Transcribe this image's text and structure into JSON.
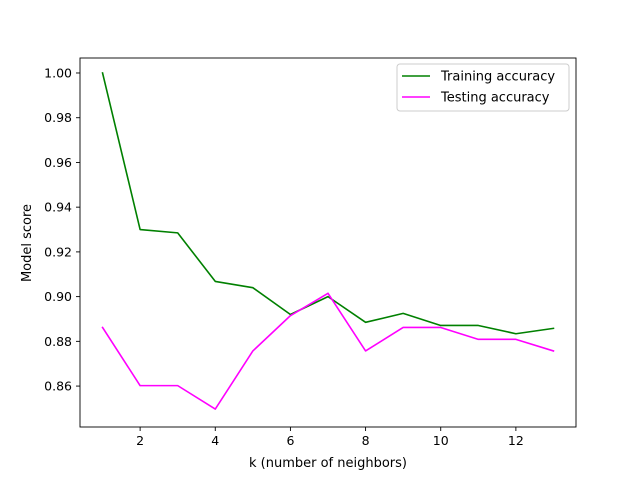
{
  "chart_data": {
    "type": "line",
    "title": "",
    "xlabel": "k (number of neighbors)",
    "ylabel": "Model score",
    "xlim": [
      0.4,
      13.6
    ],
    "ylim": [
      0.8417,
      1.0067
    ],
    "xticks": [
      2,
      4,
      6,
      8,
      10,
      12
    ],
    "xtick_labels": [
      "2",
      "4",
      "6",
      "8",
      "10",
      "12"
    ],
    "yticks": [
      0.86,
      0.88,
      0.9,
      0.92,
      0.94,
      0.96,
      0.98,
      1.0
    ],
    "ytick_labels": [
      "0.86",
      "0.88",
      "0.90",
      "0.92",
      "0.94",
      "0.96",
      "0.98",
      "1.00"
    ],
    "grid": false,
    "legend_position": "top-right",
    "x": [
      1,
      2,
      3,
      4,
      5,
      6,
      7,
      8,
      9,
      10,
      11,
      12,
      13
    ],
    "series": [
      {
        "name": "Training accuracy",
        "color": "#008000",
        "values": [
          1.0,
          0.93,
          0.9285,
          0.9068,
          0.904,
          0.892,
          0.9,
          0.8885,
          0.8925,
          0.8871,
          0.8871,
          0.8834,
          0.8858
        ]
      },
      {
        "name": "Testing accuracy",
        "color": "#ff00ff",
        "values": [
          0.8862,
          0.8602,
          0.8602,
          0.8497,
          0.8757,
          0.8915,
          0.9015,
          0.8757,
          0.8862,
          0.8862,
          0.8809,
          0.8809,
          0.8757
        ]
      }
    ]
  }
}
